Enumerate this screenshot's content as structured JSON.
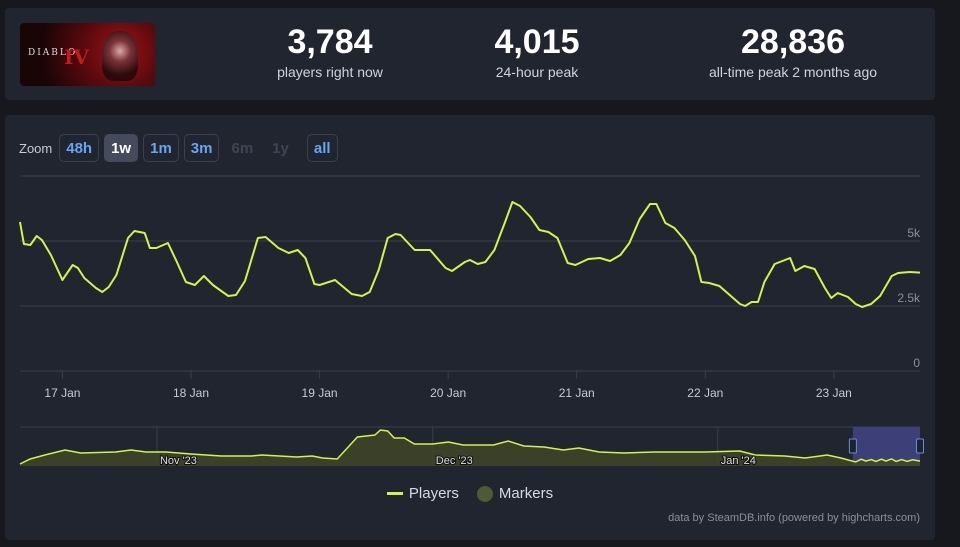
{
  "game": {
    "logo_text": "DIABLO",
    "logo_numeral": "IV"
  },
  "stats": [
    {
      "value": "3,784",
      "label": "players right now"
    },
    {
      "value": "4,015",
      "label": "24-hour peak"
    },
    {
      "value": "28,836",
      "label": "all-time peak 2 months ago"
    }
  ],
  "zoom": {
    "label": "Zoom",
    "buttons": [
      "48h",
      "1w",
      "1m",
      "3m",
      "6m",
      "1y",
      "all"
    ],
    "selected": "1w",
    "disabled": [
      "6m",
      "1y"
    ]
  },
  "legend": {
    "players": "Players",
    "markers": "Markers"
  },
  "credit": "data by SteamDB.info (powered by highcharts.com)",
  "colors": {
    "line": "#d2f34c",
    "nav_fill": "#3f4727",
    "nav_select": "#3d3f78",
    "button_text": "#66a5f2"
  },
  "chart_data": {
    "type": "line",
    "title": "",
    "xlabel": "",
    "ylabel": "Players",
    "x_unit": "day of January 2024",
    "xlim": [
      16.67,
      23.67
    ],
    "ylim": [
      0,
      7500
    ],
    "yticks": [
      0,
      2500,
      5000,
      7500
    ],
    "ytick_labels": [
      "0",
      "2.5k",
      "5k",
      ""
    ],
    "xticks": [
      17,
      18,
      19,
      20,
      21,
      22,
      23
    ],
    "xtick_labels": [
      "17 Jan",
      "18 Jan",
      "19 Jan",
      "20 Jan",
      "21 Jan",
      "22 Jan",
      "23 Jan"
    ],
    "grid": true,
    "legend_position": "bottom-center",
    "series": [
      {
        "name": "Players",
        "points": [
          [
            16.67,
            5731
          ],
          [
            16.7,
            4885
          ],
          [
            16.75,
            4846
          ],
          [
            16.8,
            5192
          ],
          [
            16.84,
            5038
          ],
          [
            16.91,
            4461
          ],
          [
            17.0,
            3500
          ],
          [
            17.08,
            4077
          ],
          [
            17.12,
            3962
          ],
          [
            17.17,
            3577
          ],
          [
            17.26,
            3192
          ],
          [
            17.31,
            3038
          ],
          [
            17.36,
            3231
          ],
          [
            17.42,
            3692
          ],
          [
            17.51,
            5115
          ],
          [
            17.56,
            5385
          ],
          [
            17.64,
            5308
          ],
          [
            17.68,
            4731
          ],
          [
            17.73,
            4731
          ],
          [
            17.82,
            4923
          ],
          [
            17.89,
            4192
          ],
          [
            17.96,
            3423
          ],
          [
            18.03,
            3308
          ],
          [
            18.1,
            3654
          ],
          [
            18.17,
            3308
          ],
          [
            18.29,
            2885
          ],
          [
            18.35,
            2923
          ],
          [
            18.42,
            3462
          ],
          [
            18.52,
            5115
          ],
          [
            18.58,
            5154
          ],
          [
            18.68,
            4731
          ],
          [
            18.76,
            4538
          ],
          [
            18.83,
            4654
          ],
          [
            18.89,
            4346
          ],
          [
            18.96,
            3346
          ],
          [
            19.0,
            3308
          ],
          [
            19.12,
            3500
          ],
          [
            19.25,
            2962
          ],
          [
            19.33,
            2885
          ],
          [
            19.39,
            3038
          ],
          [
            19.46,
            3885
          ],
          [
            19.53,
            5115
          ],
          [
            19.59,
            5269
          ],
          [
            19.63,
            5231
          ],
          [
            19.74,
            4654
          ],
          [
            19.86,
            4654
          ],
          [
            19.98,
            3962
          ],
          [
            20.03,
            3846
          ],
          [
            20.13,
            4192
          ],
          [
            20.17,
            4269
          ],
          [
            20.23,
            4115
          ],
          [
            20.29,
            4192
          ],
          [
            20.36,
            4654
          ],
          [
            20.44,
            5692
          ],
          [
            20.5,
            6500
          ],
          [
            20.56,
            6346
          ],
          [
            20.64,
            5923
          ],
          [
            20.71,
            5423
          ],
          [
            20.78,
            5346
          ],
          [
            20.85,
            5115
          ],
          [
            20.93,
            4154
          ],
          [
            20.99,
            4077
          ],
          [
            21.09,
            4308
          ],
          [
            21.18,
            4346
          ],
          [
            21.26,
            4231
          ],
          [
            21.34,
            4462
          ],
          [
            21.41,
            4923
          ],
          [
            21.49,
            5846
          ],
          [
            21.57,
            6423
          ],
          [
            21.62,
            6423
          ],
          [
            21.69,
            5692
          ],
          [
            21.76,
            5500
          ],
          [
            21.84,
            5038
          ],
          [
            21.92,
            4423
          ],
          [
            21.97,
            3423
          ],
          [
            22.03,
            3385
          ],
          [
            22.11,
            3269
          ],
          [
            22.19,
            2923
          ],
          [
            22.27,
            2577
          ],
          [
            22.31,
            2500
          ],
          [
            22.36,
            2654
          ],
          [
            22.41,
            2654
          ],
          [
            22.46,
            3423
          ],
          [
            22.54,
            4115
          ],
          [
            22.62,
            4269
          ],
          [
            22.66,
            4346
          ],
          [
            22.7,
            3846
          ],
          [
            22.77,
            4038
          ],
          [
            22.85,
            3923
          ],
          [
            22.93,
            3192
          ],
          [
            22.98,
            2808
          ],
          [
            23.03,
            3000
          ],
          [
            23.11,
            2846
          ],
          [
            23.17,
            2577
          ],
          [
            23.22,
            2462
          ],
          [
            23.29,
            2577
          ],
          [
            23.36,
            2885
          ],
          [
            23.45,
            3654
          ],
          [
            23.5,
            3769
          ],
          [
            23.59,
            3808
          ],
          [
            23.67,
            3784
          ]
        ]
      }
    ],
    "navigator": {
      "x_unit": "days since 1 Nov 2023",
      "xlim": [
        -14.9,
        83.0
      ],
      "ylim": [
        0,
        12000
      ],
      "xticks": [
        0,
        30,
        61
      ],
      "xtick_labels": [
        "Nov '23",
        "Dec '23",
        "Jan '24"
      ],
      "selected_range": [
        75.7,
        83.0
      ],
      "points": [
        [
          -14.9,
          616
        ],
        [
          -13.8,
          2156
        ],
        [
          -12.2,
          3388
        ],
        [
          -10.0,
          4928
        ],
        [
          -8.3,
          4004
        ],
        [
          -4.5,
          4312
        ],
        [
          -2.8,
          4928
        ],
        [
          -1.2,
          4312
        ],
        [
          1.0,
          4312
        ],
        [
          3.7,
          3696
        ],
        [
          7.0,
          3080
        ],
        [
          10.3,
          3080
        ],
        [
          11.4,
          3388
        ],
        [
          15.2,
          2772
        ],
        [
          16.9,
          3080
        ],
        [
          18.0,
          2464
        ],
        [
          19.6,
          2156
        ],
        [
          20.7,
          5544
        ],
        [
          21.8,
          8932
        ],
        [
          23.7,
          9548
        ],
        [
          24.3,
          11088
        ],
        [
          25.1,
          10780
        ],
        [
          25.8,
          8624
        ],
        [
          26.9,
          8624
        ],
        [
          28.0,
          6776
        ],
        [
          30.0,
          6776
        ],
        [
          31.7,
          7392
        ],
        [
          33.3,
          6468
        ],
        [
          36.6,
          6468
        ],
        [
          38.2,
          7700
        ],
        [
          39.9,
          6160
        ],
        [
          42.1,
          5852
        ],
        [
          44.2,
          4928
        ],
        [
          45.9,
          5544
        ],
        [
          48.1,
          4312
        ],
        [
          50.8,
          4004
        ],
        [
          54.1,
          4312
        ],
        [
          59.6,
          4312
        ],
        [
          63.4,
          4620
        ],
        [
          65.1,
          3388
        ],
        [
          68.3,
          3080
        ],
        [
          70.5,
          2464
        ],
        [
          72.9,
          3388
        ],
        [
          74.4,
          2464
        ],
        [
          76.0,
          1232
        ],
        [
          76.6,
          2100
        ],
        [
          77.1,
          1500
        ],
        [
          77.7,
          2000
        ],
        [
          78.2,
          1400
        ],
        [
          78.8,
          2100
        ],
        [
          79.3,
          1500
        ],
        [
          79.9,
          2200
        ],
        [
          80.4,
          1400
        ],
        [
          81.0,
          2000
        ],
        [
          81.6,
          1400
        ],
        [
          82.2,
          1900
        ],
        [
          83.0,
          1500
        ]
      ]
    }
  }
}
